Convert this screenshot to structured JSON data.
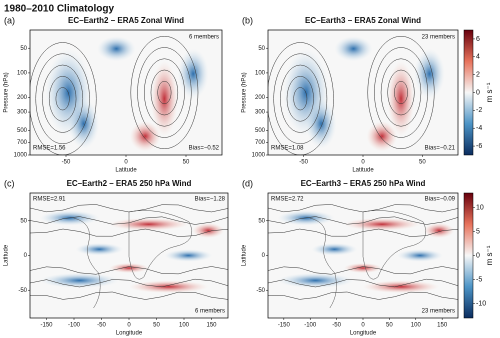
{
  "title": "1980–2010 Climatology",
  "chart_data": [
    {
      "type": "contour",
      "label": "(a)",
      "title": "EC–Earth2 – ERA5 Zonal Wind",
      "xlabel": "Latitude",
      "ylabel": "Pressure (hPa)",
      "xlim": [
        -80,
        80
      ],
      "xticks": [
        -50,
        0,
        50
      ],
      "ylim": [
        1000,
        30
      ],
      "yticks": [
        50,
        100,
        200,
        300,
        500,
        700,
        1000
      ],
      "ylog": true,
      "annotations": {
        "members": "6 members",
        "rmse": "RMSE=1.56",
        "bias": "Bias=−0.52"
      }
    },
    {
      "type": "contour",
      "label": "(b)",
      "title": "EC–Earth3 – ERA5 Zonal Wind",
      "xlabel": "Latitude",
      "ylabel": "Pressure (hPa)",
      "xlim": [
        -80,
        80
      ],
      "xticks": [
        -50,
        0,
        50
      ],
      "ylim": [
        1000,
        30
      ],
      "yticks": [
        50,
        100,
        200,
        300,
        500,
        700,
        1000
      ],
      "ylog": true,
      "annotations": {
        "members": "23 members",
        "rmse": "RMSE=1.08",
        "bias": "Bias=−0.21"
      },
      "colorbar": {
        "label": "m s⁻¹",
        "lim": [
          -7,
          7
        ],
        "ticks": [
          6,
          4,
          2,
          0,
          -2,
          -4,
          -6
        ]
      }
    },
    {
      "type": "map",
      "label": "(c)",
      "title": "EC–Earth2 – ERA5 250 hPa Wind",
      "xlabel": "Longitude",
      "ylabel": "Latitude",
      "xlim": [
        -180,
        180
      ],
      "xticks": [
        -150,
        -100,
        -50,
        0,
        50,
        100,
        150
      ],
      "ylim": [
        -90,
        90
      ],
      "yticks": [
        -50,
        0,
        50
      ],
      "annotations": {
        "members": "6 members",
        "rmse": "RMSE=2.91",
        "bias": "Bias=−1.28"
      }
    },
    {
      "type": "map",
      "label": "(d)",
      "title": "EC–Earth3 – ERA5 250 hPa Wind",
      "xlabel": "Longitude",
      "ylabel": "Latitude",
      "xlim": [
        -180,
        180
      ],
      "xticks": [
        -150,
        -100,
        -50,
        0,
        50,
        100,
        150
      ],
      "ylim": [
        -90,
        90
      ],
      "yticks": [
        -50,
        0,
        50
      ],
      "annotations": {
        "members": "23 members",
        "rmse": "RMSE=2.72",
        "bias": "Bias=−0.09"
      },
      "colorbar": {
        "label": "m s⁻¹",
        "lim": [
          -13,
          13
        ],
        "ticks": [
          10,
          5,
          0,
          -5,
          -10
        ]
      }
    }
  ]
}
